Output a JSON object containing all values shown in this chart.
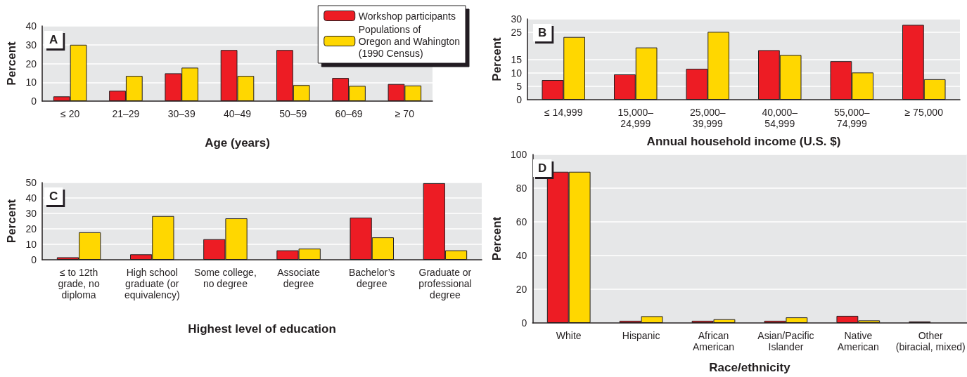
{
  "chart_data": [
    {
      "type": "bar",
      "xlabel": "Age (years)",
      "ylabel": "Percent",
      "annotations": [
        "A"
      ],
      "categories": [
        "≤ 20",
        "21–29",
        "30–39",
        "40–49",
        "50–59",
        "60–69",
        "≥ 70"
      ],
      "series": [
        {
          "name": "Workshop participants",
          "color": "#ed1c24",
          "values": [
            2.5,
            5.5,
            14.8,
            27.2,
            27.2,
            12.3,
            9.1
          ]
        },
        {
          "name": "Populations of\nOregon and Wahington\n(1990 Census)",
          "color": "#ffd700",
          "values": [
            30,
            13.4,
            17.8,
            13.4,
            8.5,
            8.1,
            8.3
          ]
        }
      ],
      "ylim": [
        0,
        40
      ],
      "yticks": [
        0,
        10,
        20,
        30,
        40
      ],
      "grid": "y",
      "legend": "top right"
    },
    {
      "type": "bar",
      "xlabel": "Annual household income (U.S. $)",
      "ylabel": "Percent",
      "annotations": [
        "B"
      ],
      "categories": [
        "≤ 14,999",
        "15,000–\n24,999",
        "25,000–\n39,999",
        "40,000–\n54,999",
        "55,000–\n74,999",
        "≥ 75,000"
      ],
      "series": [
        {
          "color": "#ed1c24",
          "values": [
            7.3,
            9.4,
            11.5,
            18.4,
            14.3,
            27.8
          ]
        },
        {
          "color": "#ffd700",
          "values": [
            23.3,
            19.4,
            25.2,
            16.6,
            10.1,
            7.6
          ]
        }
      ],
      "ylim": [
        0,
        30
      ],
      "yticks": [
        0,
        5,
        10,
        15,
        25,
        30
      ],
      "grid": "y"
    },
    {
      "type": "bar",
      "xlabel": "Highest level of education",
      "ylabel": "Percent",
      "annotations": [
        "C"
      ],
      "categories": [
        "≤ to 12th\ngrade, no\ndiploma",
        "High school\ngraduate (or\nequivalency)",
        "Some college,\nno degree",
        "Associate\ndegree",
        "Bachelor’s\ndegree",
        "Graduate or\nprofessional\ndegree"
      ],
      "series": [
        {
          "color": "#ed1c24",
          "values": [
            1.6,
            3.5,
            13.3,
            6.1,
            27.3,
            49.6
          ]
        },
        {
          "color": "#ffd700",
          "values": [
            17.8,
            28.3,
            26.8,
            7.2,
            14.5,
            6.1
          ]
        }
      ],
      "ylim": [
        0,
        50
      ],
      "yticks": [
        0,
        10,
        20,
        30,
        40,
        50
      ],
      "grid": "y"
    },
    {
      "type": "bar",
      "xlabel": "Race/ethnicity",
      "ylabel": "Percent",
      "annotations": [
        "D"
      ],
      "categories": [
        "White",
        "Hispanic",
        "African\nAmerican",
        "Asian/Pacific\nIslander",
        "Native\nAmerican",
        "Other\n(biracial, mixed)"
      ],
      "series": [
        {
          "color": "#ed1c24",
          "values": [
            89.7,
            1.3,
            1.3,
            1.3,
            4.2,
            0.9
          ]
        },
        {
          "color": "#ffd700",
          "values": [
            89.7,
            4.0,
            2.2,
            3.3,
            1.5,
            null
          ]
        }
      ],
      "ylim": [
        0,
        100
      ],
      "yticks": [
        0,
        20,
        40,
        60,
        80,
        100
      ],
      "grid": "y"
    }
  ]
}
